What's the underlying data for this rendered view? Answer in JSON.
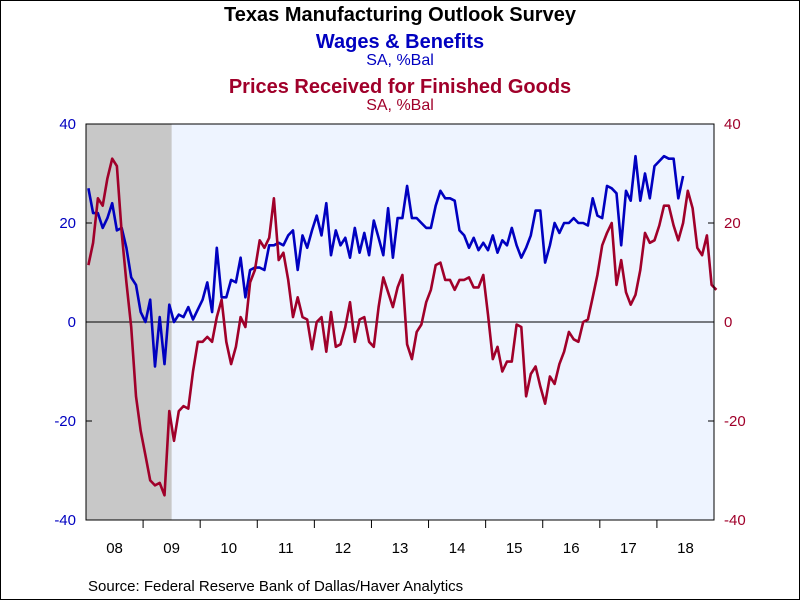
{
  "chart_data": {
    "type": "line",
    "title": "Texas Manufacturing Outlook Survey",
    "source": "Source:  Federal Reserve Bank of Dallas/Haver Analytics",
    "x_range": [
      "2008-01",
      "2018-12"
    ],
    "x_tick_labels": [
      "08",
      "09",
      "10",
      "11",
      "12",
      "13",
      "14",
      "15",
      "16",
      "17",
      "18"
    ],
    "ylim": [
      -40,
      40
    ],
    "left_axis": {
      "ticks": [
        -40,
        -20,
        0,
        20,
        40
      ],
      "tick_labels": [
        "-40",
        "-20",
        "0",
        "20",
        "40"
      ],
      "color": "#0000c0"
    },
    "right_axis": {
      "ticks": [
        -40,
        -20,
        0,
        20,
        40
      ],
      "tick_labels": [
        "-40",
        "-20",
        "0",
        "20",
        "40"
      ],
      "color": "#a0002a"
    },
    "recession_shading": {
      "start": "2008-01",
      "end": "2009-06",
      "color": "#c8c8c8"
    },
    "plot_background": "#eef4ff",
    "series": [
      {
        "name": "Wages & Benefits",
        "subtitle": "SA, %Bal",
        "color": "#0000c0",
        "axis": "left",
        "start": "2008-01",
        "values": [
          27,
          22,
          22,
          19,
          21,
          24,
          18.5,
          19,
          15,
          9,
          7.5,
          2,
          0,
          4.5,
          -9,
          1,
          -8.5,
          3.5,
          0,
          1.5,
          1,
          3,
          0.5,
          2.5,
          4.5,
          8,
          2,
          15,
          5,
          5,
          8.5,
          8,
          13,
          5,
          10.5,
          11,
          11,
          10.5,
          15.5,
          15.5,
          16,
          15.5,
          17.5,
          18.5,
          10.5,
          17.5,
          15,
          18.5,
          21.5,
          17.5,
          24,
          13.5,
          18.5,
          15.5,
          17,
          13,
          19,
          14,
          18,
          13.5,
          20.5,
          17,
          13.5,
          23,
          13,
          21,
          21,
          27.5,
          21,
          21,
          20,
          19,
          19,
          23.5,
          26.5,
          25,
          25,
          24.5,
          18.5,
          17.5,
          15,
          17,
          14.5,
          16,
          14.5,
          17.5,
          14,
          16.5,
          15.5,
          19,
          15.5,
          13,
          15,
          17.5,
          22.5,
          22.5,
          12,
          15.5,
          20,
          18,
          20,
          20,
          21,
          20,
          20,
          19.5,
          25,
          21.5,
          21,
          27.5,
          27,
          26,
          15.5,
          26.5,
          24.5,
          33.5,
          24.5,
          30,
          25,
          31.5,
          32.5,
          33.5,
          33,
          33,
          25,
          29.5
        ]
      },
      {
        "name": "Prices Received for Finished Goods",
        "subtitle": "SA, %Bal",
        "color": "#a0002a",
        "axis": "right",
        "start": "2008-01",
        "values": [
          11.5,
          16,
          25,
          23.5,
          29,
          33,
          31.5,
          18,
          8,
          -1,
          -15,
          -22,
          -27,
          -32,
          -33,
          -32.5,
          -35,
          -18,
          -24,
          -18,
          -17,
          -17.5,
          -10,
          -4,
          -4,
          -3,
          -4,
          1,
          4.5,
          -4,
          -8.5,
          -5,
          1,
          -1,
          8,
          10.5,
          16.5,
          15,
          17,
          25,
          12.5,
          14,
          8.5,
          1,
          5,
          1,
          0.5,
          -5.5,
          0,
          1,
          -6,
          2,
          -5,
          -4.5,
          -1,
          4,
          -4,
          0.5,
          1,
          -4,
          -5,
          3,
          9,
          6,
          3,
          7,
          9.5,
          -4.5,
          -7.5,
          -2,
          -0.5,
          4,
          6.5,
          11.5,
          12,
          8.5,
          8.5,
          6.5,
          8.5,
          8.5,
          9,
          7,
          7,
          9.5,
          1.5,
          -7.5,
          -5,
          -10,
          -8,
          -8,
          -0.5,
          -1,
          -15,
          -10.5,
          -9,
          -13,
          -16.5,
          -11,
          -12.5,
          -8.5,
          -6,
          -2,
          -3.5,
          -4,
          0,
          0.5,
          5,
          9.5,
          15.5,
          18,
          20,
          7.5,
          12.5,
          6,
          3.5,
          5.5,
          10.5,
          18,
          16,
          16.5,
          19.5,
          23.5,
          23.5,
          19.5,
          16.5,
          20,
          26.5,
          23,
          15,
          13.5,
          17.5,
          7.5,
          6.5
        ]
      }
    ]
  }
}
